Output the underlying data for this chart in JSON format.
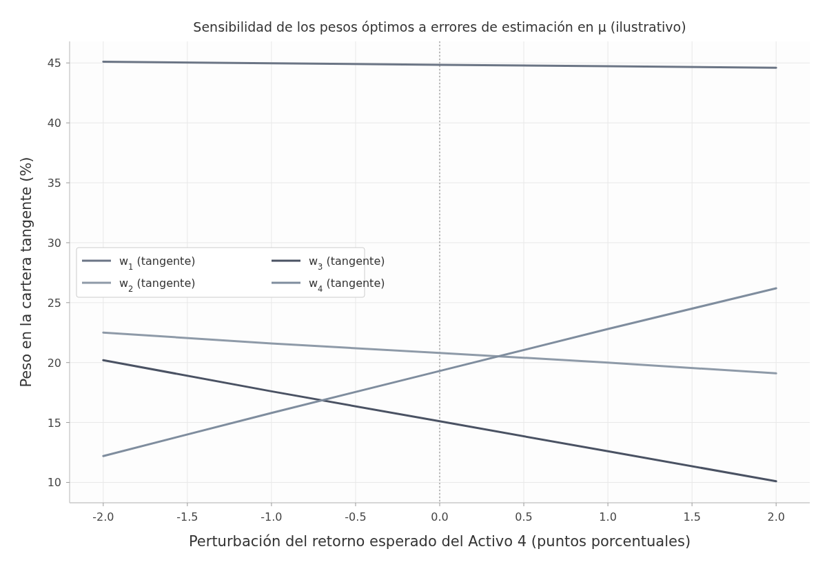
{
  "chart_data": {
    "type": "line",
    "title": "Sensibilidad de los pesos óptimos a errores de estimación en μ (ilustrativo)",
    "xlabel": "Perturbación del retorno esperado del Activo 4 (puntos porcentuales)",
    "ylabel": "Peso en la cartera tangente (%)",
    "x": [
      -2,
      -1,
      0,
      1,
      2
    ],
    "series": [
      {
        "name": "w$_{1}$ (tangente)",
        "color": "#6b7585",
        "values": [
          45.1,
          44.97,
          44.85,
          44.73,
          44.6
        ]
      },
      {
        "name": "w$_{2}$ (tangente)",
        "color": "#8e9aa8",
        "values": [
          22.5,
          21.6,
          20.8,
          20.0,
          19.1
        ]
      },
      {
        "name": "w$_{3}$ (tangente)",
        "color": "#4a5263",
        "values": [
          20.2,
          17.6,
          15.1,
          12.6,
          10.1
        ]
      },
      {
        "name": "w$_{4}$ (tangente)",
        "color": "#7f8d9e",
        "values": [
          12.2,
          15.8,
          19.3,
          22.8,
          26.2
        ]
      }
    ],
    "xlim": [
      -2.2,
      2.2
    ],
    "ylim": [
      8.3,
      46.8
    ],
    "xticks": [
      {
        "value": -2,
        "label": "-2.0"
      },
      {
        "value": -1.5,
        "label": "-1.5"
      },
      {
        "value": -1,
        "label": "-1.0"
      },
      {
        "value": -0.5,
        "label": "-0.5"
      },
      {
        "value": 0,
        "label": "0.0"
      },
      {
        "value": 0.5,
        "label": "0.5"
      },
      {
        "value": 1,
        "label": "1.0"
      },
      {
        "value": 1.5,
        "label": "1.5"
      },
      {
        "value": 2,
        "label": "2.0"
      }
    ],
    "yticks": [
      10,
      15,
      20,
      25,
      30,
      35,
      40,
      45
    ],
    "ref_lines": [
      {
        "axis": "x",
        "value": 0,
        "color": "#999999",
        "line_style": "dotted"
      }
    ],
    "grid": true,
    "legend": "center left",
    "line_style": "solid"
  }
}
